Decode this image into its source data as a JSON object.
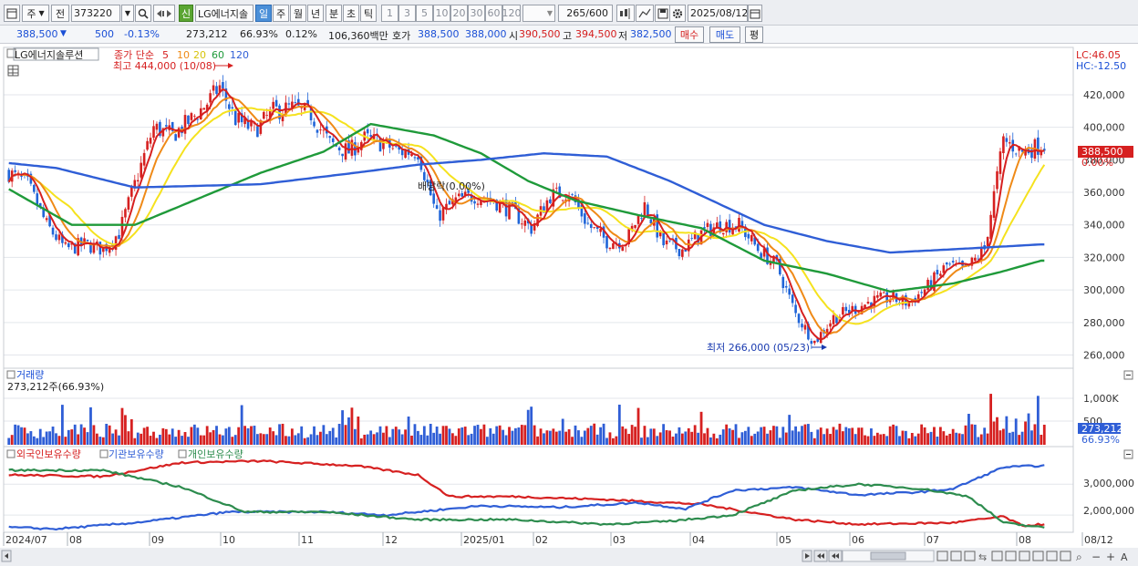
{
  "toolbar": {
    "type_label": "주",
    "prev_label": "전",
    "code_value": "373220",
    "name_badge": "신",
    "stock_name": "LG에너지솔",
    "periods": [
      "일",
      "주",
      "월",
      "년",
      "분",
      "초",
      "틱"
    ],
    "active_period": "일",
    "intervals": [
      "1",
      "3",
      "5",
      "10",
      "20",
      "30",
      "60",
      "120"
    ],
    "count_value": "265",
    "count_total": "/600",
    "date_value": "2025/08/12"
  },
  "info": {
    "price": "388,500",
    "change": "500",
    "change_pct": "-0.13%",
    "volume": "273,212",
    "volume_ratio": "66.93%",
    "turnover_pct": "0.12%",
    "amount": "106,360백만",
    "quote_label": "호가",
    "ask": "388,500",
    "bid": "388,000",
    "open_label": "시",
    "open": "390,500",
    "high_label": "고",
    "high": "394,500",
    "low_label": "저",
    "low": "382,500",
    "buy_label": "매수",
    "sell_label": "매도",
    "eval_label": "평"
  },
  "price_panel": {
    "title": "LG에너지솔루션",
    "legend_label": "종가 단순",
    "ma_periods": [
      "5",
      "10",
      "20",
      "60",
      "120"
    ],
    "ma_colors": [
      "#d62020",
      "#ef8a17",
      "#f5e21e",
      "#1f9a3a",
      "#2f5ed6"
    ],
    "high_annotation": "최고 444,000 (10/08)",
    "low_annotation": "최저 266,000 (05/23)",
    "dividend_annotation": "배당락(0.00%)",
    "lc_label": "LC:46.05",
    "hc_label": "HC:-12.50",
    "current_price_label": "388,500",
    "current_pct_label": "0.00%"
  },
  "volume_panel": {
    "title": "거래량",
    "value": "273,212주(66.93%)",
    "axis_label": "1,000K",
    "axis_label2": "500",
    "current_label": "273,212",
    "current_pct": "66.93%"
  },
  "holdings_panel": {
    "legend": [
      "외국인보유수량",
      "기관보유수량",
      "개인보유수량"
    ],
    "legend_colors": [
      "#d62020",
      "#2f5ed6",
      "#2d8c4e"
    ],
    "axis": [
      "3,000,000",
      "2,000,000"
    ]
  },
  "xaxis": {
    "labels": [
      "2024/07",
      "08",
      "09",
      "10",
      "11",
      "12",
      "2025/01",
      "02",
      "03",
      "04",
      "05",
      "06",
      "07",
      "08",
      "08/12"
    ]
  },
  "chart_data": {
    "type": "line",
    "y_ticks": [
      420000,
      400000,
      380000,
      360000,
      340000,
      320000,
      300000,
      280000,
      260000
    ],
    "ylim": [
      253000,
      448000
    ],
    "price_key": [
      [
        0,
        372000
      ],
      [
        6,
        365000
      ],
      [
        12,
        340000
      ],
      [
        18,
        325000
      ],
      [
        24,
        328000
      ],
      [
        30,
        325000
      ],
      [
        35,
        335000
      ],
      [
        40,
        365000
      ],
      [
        46,
        400000
      ],
      [
        52,
        395000
      ],
      [
        58,
        405000
      ],
      [
        63,
        415000
      ],
      [
        67,
        425000
      ],
      [
        72,
        405000
      ],
      [
        78,
        398000
      ],
      [
        84,
        410000
      ],
      [
        90,
        412000
      ],
      [
        96,
        408000
      ],
      [
        102,
        390000
      ],
      [
        108,
        385000
      ],
      [
        113,
        393000
      ],
      [
        119,
        390000
      ],
      [
        124,
        385000
      ],
      [
        130,
        385000
      ],
      [
        136,
        345000
      ],
      [
        142,
        355000
      ],
      [
        148,
        358000
      ],
      [
        154,
        355000
      ],
      [
        160,
        348000
      ],
      [
        166,
        338000
      ],
      [
        172,
        358000
      ],
      [
        178,
        360000
      ],
      [
        184,
        340000
      ],
      [
        190,
        330000
      ],
      [
        196,
        330000
      ],
      [
        202,
        352000
      ],
      [
        208,
        328000
      ],
      [
        214,
        325000
      ],
      [
        220,
        335000
      ],
      [
        226,
        340000
      ],
      [
        232,
        340000
      ],
      [
        238,
        325000
      ],
      [
        244,
        315000
      ],
      [
        250,
        285000
      ],
      [
        256,
        268000
      ],
      [
        262,
        283000
      ],
      [
        268,
        288000
      ],
      [
        274,
        293000
      ],
      [
        280,
        295000
      ],
      [
        286,
        292000
      ],
      [
        292,
        302000
      ],
      [
        298,
        315000
      ],
      [
        304,
        312000
      ],
      [
        310,
        325000
      ],
      [
        316,
        392000
      ],
      [
        322,
        385000
      ],
      [
        328,
        389000
      ]
    ],
    "ma60_key": [
      [
        0,
        362000
      ],
      [
        20,
        340000
      ],
      [
        40,
        340000
      ],
      [
        60,
        356000
      ],
      [
        80,
        372000
      ],
      [
        100,
        385000
      ],
      [
        115,
        402000
      ],
      [
        135,
        395000
      ],
      [
        150,
        384000
      ],
      [
        165,
        367000
      ],
      [
        180,
        355000
      ],
      [
        200,
        346000
      ],
      [
        220,
        338000
      ],
      [
        240,
        318000
      ],
      [
        260,
        310000
      ],
      [
        280,
        299000
      ],
      [
        300,
        304000
      ],
      [
        315,
        311000
      ],
      [
        328,
        318000
      ]
    ],
    "ma120_key": [
      [
        0,
        378000
      ],
      [
        15,
        375000
      ],
      [
        40,
        363000
      ],
      [
        80,
        365000
      ],
      [
        110,
        372000
      ],
      [
        130,
        377000
      ],
      [
        150,
        380000
      ],
      [
        170,
        384000
      ],
      [
        190,
        382000
      ],
      [
        210,
        367000
      ],
      [
        240,
        340000
      ],
      [
        260,
        330000
      ],
      [
        280,
        323000
      ],
      [
        300,
        325000
      ],
      [
        328,
        328000
      ]
    ],
    "volume_scale_max": 1200000,
    "holdings": {
      "ylim": [
        1500000,
        4100000
      ],
      "foreign_key": [
        [
          0,
          3300000
        ],
        [
          30,
          3250000
        ],
        [
          55,
          3700000
        ],
        [
          80,
          3750000
        ],
        [
          110,
          3600000
        ],
        [
          130,
          3300000
        ],
        [
          140,
          2600000
        ],
        [
          160,
          2600000
        ],
        [
          190,
          2500000
        ],
        [
          220,
          2350000
        ],
        [
          250,
          1850000
        ],
        [
          270,
          1700000
        ],
        [
          300,
          1750000
        ],
        [
          316,
          1950000
        ],
        [
          322,
          1650000
        ],
        [
          328,
          1700000
        ]
      ],
      "institution_key": [
        [
          0,
          1600000
        ],
        [
          15,
          1550000
        ],
        [
          40,
          1750000
        ],
        [
          70,
          2100000
        ],
        [
          100,
          2100000
        ],
        [
          120,
          2000000
        ],
        [
          150,
          2300000
        ],
        [
          175,
          2250000
        ],
        [
          200,
          2400000
        ],
        [
          215,
          2200000
        ],
        [
          230,
          2800000
        ],
        [
          250,
          2900000
        ],
        [
          270,
          2650000
        ],
        [
          290,
          2750000
        ],
        [
          300,
          2850000
        ],
        [
          316,
          3550000
        ],
        [
          328,
          3600000
        ]
      ],
      "individual_key": [
        [
          0,
          3450000
        ],
        [
          30,
          3450000
        ],
        [
          55,
          2900000
        ],
        [
          75,
          2100000
        ],
        [
          100,
          2100000
        ],
        [
          130,
          1850000
        ],
        [
          160,
          1850000
        ],
        [
          190,
          1700000
        ],
        [
          210,
          1800000
        ],
        [
          230,
          2000000
        ],
        [
          250,
          2800000
        ],
        [
          270,
          3000000
        ],
        [
          290,
          2850000
        ],
        [
          305,
          2600000
        ],
        [
          316,
          1750000
        ],
        [
          328,
          1600000
        ]
      ]
    }
  }
}
